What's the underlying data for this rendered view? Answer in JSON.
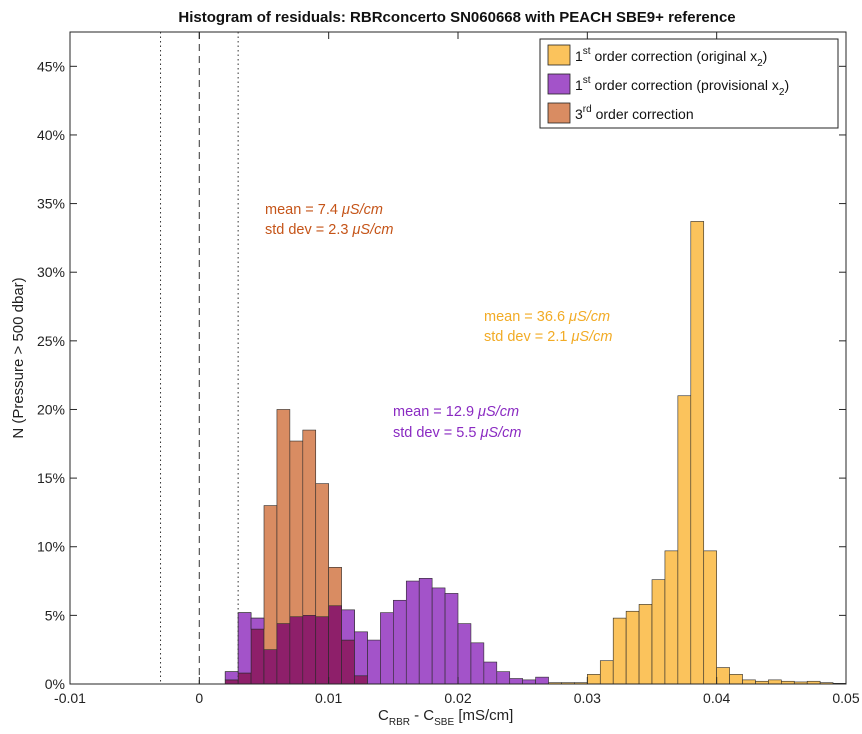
{
  "chart_data": {
    "type": "bar",
    "title": "Histogram of residuals: RBRconcerto SN060668 with PEACH SBE9+ reference",
    "xlabel": {
      "main": "C",
      "sub1": "RBR",
      "mid": " - C",
      "sub2": "SBE",
      "unit": " [mS/cm]"
    },
    "ylabel": "N (Pressure > 500 dbar)",
    "xlim": [
      -0.01,
      0.05
    ],
    "ylim": [
      0,
      47.5
    ],
    "x_ticks": [
      -0.01,
      0,
      0.01,
      0.02,
      0.03,
      0.04,
      0.05
    ],
    "x_tick_labels": [
      "-0.01",
      "0",
      "0.01",
      "0.02",
      "0.03",
      "0.04",
      "0.05"
    ],
    "y_ticks": [
      0,
      5,
      10,
      15,
      20,
      25,
      30,
      35,
      40,
      45
    ],
    "y_tick_labels": [
      "0%",
      "5%",
      "10%",
      "15%",
      "20%",
      "25%",
      "30%",
      "35%",
      "40%",
      "45%"
    ],
    "bin_width": 0.001,
    "reference_lines": {
      "dashed": [
        0
      ],
      "dotted": [
        -0.003,
        0.003
      ]
    },
    "series": [
      {
        "id": "original",
        "color": "#fbc35c",
        "legend": {
          "pre": "1",
          "sup": "st",
          "mid": " order correction (original x",
          "sub": "2",
          "post": ")"
        },
        "annotation": {
          "mean": "mean = 36.6 ",
          "mean_unit": "μS/cm",
          "std": "std dev = 2.1 ",
          "std_unit": "μS/cm"
        },
        "bin_starts": [
          0.026,
          0.027,
          0.028,
          0.029,
          0.03,
          0.031,
          0.032,
          0.033,
          0.034,
          0.035,
          0.036,
          0.037,
          0.038,
          0.039,
          0.04,
          0.041,
          0.042,
          0.043,
          0.044,
          0.045,
          0.046,
          0.047,
          0.048,
          0.049
        ],
        "values": [
          0.1,
          0.1,
          0.1,
          0.1,
          0.7,
          1.7,
          4.8,
          5.3,
          5.8,
          7.6,
          9.7,
          21.0,
          33.7,
          9.7,
          1.2,
          0.7,
          0.3,
          0.2,
          0.3,
          0.2,
          0.15,
          0.2,
          0.1,
          0.05
        ]
      },
      {
        "id": "provisional",
        "color": "#a353c9",
        "legend": {
          "pre": "1",
          "sup": "st",
          "mid": " order correction (provisional x",
          "sub": "2",
          "post": ")"
        },
        "annotation": {
          "mean": "mean = 12.9 ",
          "mean_unit": "μS/cm",
          "std": "std dev = 5.5 ",
          "std_unit": "μS/cm"
        },
        "bin_starts": [
          0.002,
          0.003,
          0.004,
          0.005,
          0.006,
          0.007,
          0.008,
          0.009,
          0.01,
          0.011,
          0.012,
          0.013,
          0.014,
          0.015,
          0.016,
          0.017,
          0.018,
          0.019,
          0.02,
          0.021,
          0.022,
          0.023,
          0.024,
          0.025,
          0.026
        ],
        "values": [
          0.9,
          5.2,
          4.8,
          2.5,
          4.4,
          4.9,
          5.0,
          4.9,
          5.7,
          5.4,
          3.8,
          3.2,
          5.2,
          6.1,
          7.5,
          7.7,
          7.0,
          6.6,
          4.4,
          3.0,
          1.6,
          0.9,
          0.4,
          0.3,
          0.5
        ]
      },
      {
        "id": "third",
        "color": "#d98c62",
        "overlap_color": "#8e1f6a",
        "legend": {
          "pre": "3",
          "sup": "rd",
          "mid": " order correction",
          "sub": "",
          "post": ""
        },
        "annotation": {
          "mean": "mean = 7.4 ",
          "mean_unit": "μS/cm",
          "std": "std dev = 2.3 ",
          "std_unit": "μS/cm"
        },
        "bin_starts": [
          0.002,
          0.003,
          0.004,
          0.005,
          0.006,
          0.007,
          0.008,
          0.009,
          0.01,
          0.011,
          0.012
        ],
        "values": [
          0.3,
          0.8,
          4.0,
          13.0,
          20.0,
          17.7,
          18.5,
          14.6,
          8.5,
          3.2,
          0.6
        ]
      }
    ],
    "annotation_colors": {
      "original": "#f2ab25",
      "provisional": "#8a2ac2",
      "third": "#c55418"
    },
    "legend_position": "top-right",
    "grid": false
  }
}
